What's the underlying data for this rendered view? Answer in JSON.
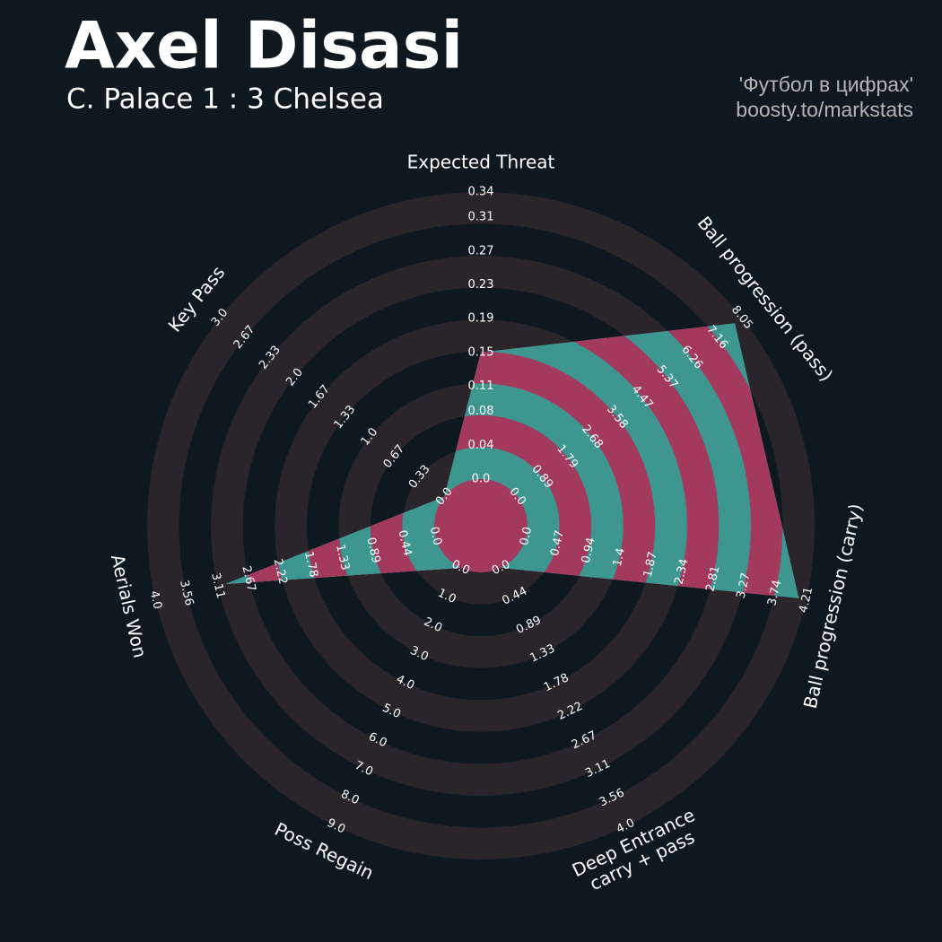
{
  "chart_data": {
    "type": "radar",
    "title": "Axel Disasi",
    "subtitle": "C. Palace 1 : 3 Chelsea",
    "credits": [
      "'Футбол в цифрах'",
      "boosty.to/markstats"
    ],
    "categories": [
      "Expected Threat",
      "Ball progression (pass)",
      "Ball progression (carry)",
      "Deep Entrance\ncarry + pass",
      "Poss Regain",
      "Aerials Won",
      "Key Pass"
    ],
    "values": [
      0.15,
      7.8,
      4.1,
      0,
      0,
      3.0,
      0
    ],
    "axes": [
      {
        "lim": [
          0,
          0.34
        ],
        "ticks": [
          {
            "value": 0,
            "label": "0.0"
          },
          0.04,
          0.08,
          0.11,
          0.15,
          0.19,
          0.23,
          0.27,
          0.31,
          0.34
        ]
      },
      {
        "lim": [
          0,
          8.05
        ],
        "ticks": [
          {
            "value": 0,
            "label": "0.0"
          },
          0.89,
          1.79,
          2.68,
          3.58,
          4.47,
          5.37,
          6.26,
          7.16,
          8.05
        ]
      },
      {
        "lim": [
          0,
          4.21
        ],
        "ticks": [
          {
            "value": 0,
            "label": "0.0"
          },
          0.47,
          0.94,
          1.4,
          1.87,
          2.34,
          2.81,
          3.27,
          3.74,
          4.21
        ]
      },
      {
        "lim": [
          0,
          4
        ],
        "ticks": [
          {
            "value": 0,
            "label": "0.0"
          },
          0.44,
          0.89,
          1.33,
          1.78,
          2.22,
          2.67,
          3.11,
          3.56,
          {
            "value": 4,
            "label": "4.0"
          }
        ]
      },
      {
        "lim": [
          0,
          9
        ],
        "ticks": [
          {
            "value": 0,
            "label": "0.0"
          },
          {
            "value": 1,
            "label": "1.0"
          },
          {
            "value": 2,
            "label": "2.0"
          },
          {
            "value": 3,
            "label": "3.0"
          },
          {
            "value": 4,
            "label": "4.0"
          },
          {
            "value": 5,
            "label": "5.0"
          },
          {
            "value": 6,
            "label": "6.0"
          },
          {
            "value": 7,
            "label": "7.0"
          },
          {
            "value": 8,
            "label": "8.0"
          },
          {
            "value": 9,
            "label": "9.0"
          }
        ]
      },
      {
        "lim": [
          0,
          4
        ],
        "ticks": [
          {
            "value": 0,
            "label": "0.0"
          },
          0.44,
          0.89,
          1.33,
          1.78,
          2.22,
          2.67,
          3.11,
          3.56,
          {
            "value": 4,
            "label": "4.0"
          }
        ]
      },
      {
        "lim": [
          0,
          3
        ],
        "ticks": [
          {
            "value": 0,
            "label": "0.0"
          },
          0.33,
          0.67,
          {
            "value": 1,
            "label": "1.0"
          },
          1.33,
          1.67,
          {
            "value": 2,
            "label": "2.0"
          },
          2.33,
          2.67,
          {
            "value": 3,
            "label": "3.0"
          }
        ]
      }
    ],
    "colors": {
      "ring": "#29252b",
      "fill": "#3d9690",
      "fill_alt": "#a33a5e"
    }
  }
}
